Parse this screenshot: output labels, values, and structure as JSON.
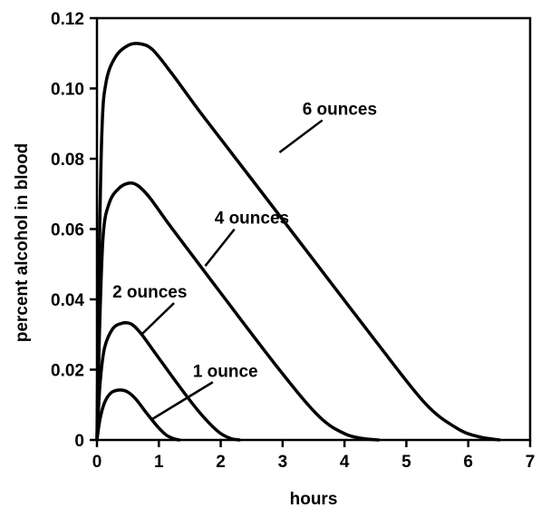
{
  "chart_data": {
    "type": "line",
    "title": "",
    "xlabel": "hours",
    "ylabel": "percent alcohol in blood",
    "xlim": [
      0,
      7
    ],
    "ylim": [
      0,
      0.12
    ],
    "xticks": [
      0,
      1,
      2,
      3,
      4,
      5,
      6,
      7
    ],
    "xtick_labels": [
      "0",
      "1",
      "2",
      "3",
      "4",
      "5",
      "6",
      "7"
    ],
    "yticks": [
      0,
      0.02,
      0.04,
      0.06,
      0.08,
      0.1,
      0.12
    ],
    "ytick_labels": [
      "0",
      "0.02",
      "0.04",
      "0.06",
      "0.08",
      "0.10",
      "0.12"
    ],
    "grid": false,
    "legend": "none",
    "series": [
      {
        "label": "1 ounce",
        "label_at": [
          1.55,
          0.018
        ],
        "leader_to": [
          0.9,
          0.006
        ],
        "points": [
          [
            0,
            0
          ],
          [
            0.05,
            0.006
          ],
          [
            0.12,
            0.0105
          ],
          [
            0.22,
            0.0133
          ],
          [
            0.35,
            0.0142
          ],
          [
            0.48,
            0.0138
          ],
          [
            0.62,
            0.0118
          ],
          [
            0.8,
            0.0077
          ],
          [
            0.98,
            0.0038
          ],
          [
            1.12,
            0.0014
          ],
          [
            1.25,
            0.0003
          ],
          [
            1.33,
            0
          ]
        ]
      },
      {
        "label": "2 ounces",
        "label_at": [
          0.25,
          0.0405
        ],
        "leader_to": [
          0.72,
          0.03
        ],
        "points": [
          [
            0,
            0
          ],
          [
            0.05,
            0.016
          ],
          [
            0.12,
            0.026
          ],
          [
            0.25,
            0.0315
          ],
          [
            0.4,
            0.0332
          ],
          [
            0.55,
            0.033
          ],
          [
            0.7,
            0.0305
          ],
          [
            0.95,
            0.0245
          ],
          [
            1.3,
            0.016
          ],
          [
            1.65,
            0.008
          ],
          [
            1.95,
            0.0025
          ],
          [
            2.15,
            0.0005
          ],
          [
            2.3,
            0
          ]
        ]
      },
      {
        "label": "4 ounces",
        "label_at": [
          1.9,
          0.0615
        ],
        "leader_to": [
          1.75,
          0.0495
        ],
        "points": [
          [
            0,
            0
          ],
          [
            0.04,
            0.03
          ],
          [
            0.1,
            0.058
          ],
          [
            0.2,
            0.0675
          ],
          [
            0.35,
            0.0715
          ],
          [
            0.5,
            0.073
          ],
          [
            0.65,
            0.0725
          ],
          [
            0.85,
            0.069
          ],
          [
            1.2,
            0.0605
          ],
          [
            2.0,
            0.0418
          ],
          [
            3.0,
            0.0188
          ],
          [
            3.6,
            0.0065
          ],
          [
            4.0,
            0.0018
          ],
          [
            4.3,
            0.0004
          ],
          [
            4.55,
            0
          ]
        ]
      },
      {
        "label": "6 ounces",
        "label_at": [
          3.32,
          0.0925
        ],
        "leader_to": [
          2.95,
          0.0818
        ],
        "points": [
          [
            0,
            0
          ],
          [
            0.03,
            0.045
          ],
          [
            0.08,
            0.088
          ],
          [
            0.15,
            0.102
          ],
          [
            0.3,
            0.109
          ],
          [
            0.5,
            0.1122
          ],
          [
            0.7,
            0.1127
          ],
          [
            0.9,
            0.111
          ],
          [
            1.2,
            0.1045
          ],
          [
            1.7,
            0.0925
          ],
          [
            2.5,
            0.0742
          ],
          [
            3.5,
            0.0512
          ],
          [
            4.5,
            0.0282
          ],
          [
            5.3,
            0.0105
          ],
          [
            5.8,
            0.0035
          ],
          [
            6.15,
            0.001
          ],
          [
            6.5,
            0
          ]
        ]
      }
    ]
  }
}
